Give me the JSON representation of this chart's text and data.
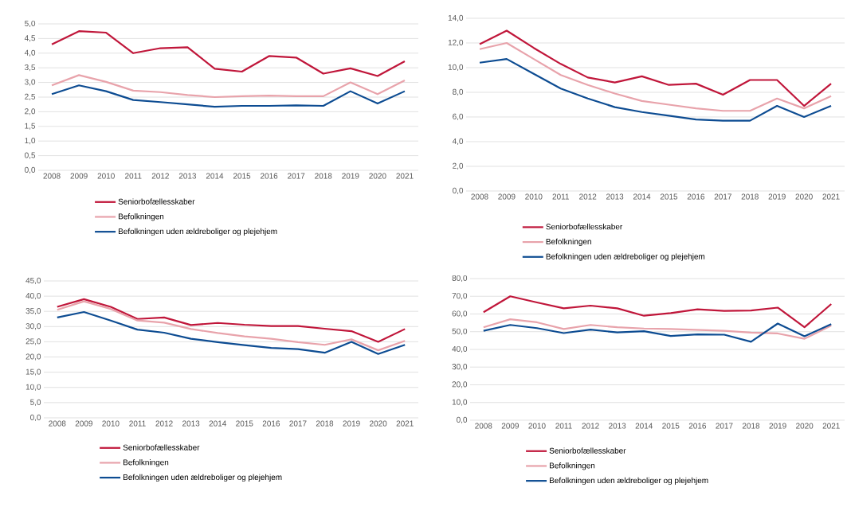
{
  "chart_data": [
    {
      "type": "line",
      "categories": [
        "2008",
        "2009",
        "2010",
        "2011",
        "2012",
        "2013",
        "2014",
        "2015",
        "2016",
        "2017",
        "2018",
        "2019",
        "2020",
        "2021"
      ],
      "ylim": [
        0,
        5
      ],
      "yticks": [
        {
          "value": 0,
          "label": "0,0"
        },
        {
          "value": 0.5,
          "label": "0,5"
        },
        {
          "value": 1,
          "label": "1,0"
        },
        {
          "value": 1.5,
          "label": "1,5"
        },
        {
          "value": 2,
          "label": "2,0"
        },
        {
          "value": 2.5,
          "label": "2,5"
        },
        {
          "value": 3,
          "label": "3,0"
        },
        {
          "value": 3.5,
          "label": "3,5"
        },
        {
          "value": 4,
          "label": "4,0"
        },
        {
          "value": 4.5,
          "label": "4,5"
        },
        {
          "value": 5,
          "label": "5,0"
        }
      ],
      "grid": "y",
      "legend": "bottom",
      "line_style": "solid",
      "marker": "none",
      "series": [
        {
          "name": "Seniorbofællesskaber",
          "color": "#c0163a",
          "values": [
            4.3,
            4.75,
            4.7,
            4.0,
            4.17,
            4.2,
            3.47,
            3.37,
            3.9,
            3.85,
            3.3,
            3.48,
            3.22,
            3.72
          ]
        },
        {
          "name": "Befolkningen",
          "color": "#e8a3ab",
          "values": [
            2.9,
            3.25,
            3.02,
            2.72,
            2.67,
            2.57,
            2.5,
            2.53,
            2.55,
            2.53,
            2.53,
            3.0,
            2.6,
            3.07
          ]
        },
        {
          "name": "Befolkningen uden ældreboliger og plejehjem",
          "color": "#0d4c92",
          "values": [
            2.6,
            2.9,
            2.7,
            2.4,
            2.33,
            2.25,
            2.17,
            2.2,
            2.2,
            2.22,
            2.2,
            2.7,
            2.28,
            2.7
          ]
        }
      ]
    },
    {
      "type": "line",
      "categories": [
        "2008",
        "2009",
        "2010",
        "2011",
        "2012",
        "2013",
        "2014",
        "2015",
        "2016",
        "2017",
        "2018",
        "2019",
        "2020",
        "2021"
      ],
      "ylim": [
        0,
        14
      ],
      "yticks": [
        {
          "value": 0,
          "label": "0,0"
        },
        {
          "value": 2,
          "label": "2,0"
        },
        {
          "value": 4,
          "label": "4,0"
        },
        {
          "value": 6,
          "label": "6,0"
        },
        {
          "value": 8,
          "label": "8,0"
        },
        {
          "value": 10,
          "label": "10,0"
        },
        {
          "value": 12,
          "label": "12,0"
        },
        {
          "value": 14,
          "label": "14,0"
        }
      ],
      "grid": "y",
      "legend": "bottom",
      "line_style": "solid",
      "marker": "none",
      "series": [
        {
          "name": "Seniorbofællesskaber",
          "color": "#c0163a",
          "values": [
            11.9,
            13.0,
            11.6,
            10.3,
            9.2,
            8.8,
            9.3,
            8.6,
            8.7,
            7.8,
            9.0,
            9.0,
            6.9,
            8.7
          ]
        },
        {
          "name": "Befolkningen",
          "color": "#e8a3ab",
          "values": [
            11.5,
            12.0,
            10.7,
            9.4,
            8.6,
            7.9,
            7.3,
            7.0,
            6.7,
            6.5,
            6.5,
            7.5,
            6.7,
            7.7
          ]
        },
        {
          "name": "Befolkningen uden ældreboliger og plejehjem",
          "color": "#0d4c92",
          "values": [
            10.4,
            10.7,
            9.5,
            8.3,
            7.5,
            6.8,
            6.4,
            6.1,
            5.8,
            5.7,
            5.7,
            6.9,
            6.0,
            6.9
          ]
        }
      ]
    },
    {
      "type": "line",
      "categories": [
        "2008",
        "2009",
        "2010",
        "2011",
        "2012",
        "2013",
        "2014",
        "2015",
        "2016",
        "2017",
        "2018",
        "2019",
        "2020",
        "2021"
      ],
      "ylim": [
        0,
        45
      ],
      "yticks": [
        {
          "value": 0,
          "label": "0,0"
        },
        {
          "value": 5,
          "label": "5,0"
        },
        {
          "value": 10,
          "label": "10,0"
        },
        {
          "value": 15,
          "label": "15,0"
        },
        {
          "value": 20,
          "label": "20,0"
        },
        {
          "value": 25,
          "label": "25,0"
        },
        {
          "value": 30,
          "label": "30,0"
        },
        {
          "value": 35,
          "label": "35,0"
        },
        {
          "value": 40,
          "label": "40,0"
        },
        {
          "value": 45,
          "label": "45,0"
        }
      ],
      "grid": "y",
      "legend": "bottom",
      "line_style": "solid",
      "marker": "none",
      "series": [
        {
          "name": "Seniorbofællesskaber",
          "color": "#c0163a",
          "values": [
            36.5,
            39,
            36.5,
            32.5,
            33,
            30.5,
            31.2,
            30.6,
            30.2,
            30.2,
            29.3,
            28.5,
            25,
            29.2
          ]
        },
        {
          "name": "Befolkningen",
          "color": "#e8a3ab",
          "values": [
            35.5,
            38.3,
            35.8,
            32,
            31.3,
            29.2,
            27.9,
            26.8,
            26,
            24.9,
            24,
            25.8,
            22.2,
            25.3
          ]
        },
        {
          "name": "Befolkningen uden ældreboliger og plejehjem",
          "color": "#0d4c92",
          "values": [
            33,
            34.8,
            32,
            29,
            28,
            26,
            24.9,
            23.9,
            23,
            22.6,
            21.4,
            25,
            21,
            24
          ]
        }
      ]
    },
    {
      "type": "line",
      "categories": [
        "2008",
        "2009",
        "2010",
        "2011",
        "2012",
        "2013",
        "2014",
        "2015",
        "2016",
        "2017",
        "2018",
        "2019",
        "2020",
        "2021"
      ],
      "ylim": [
        0,
        80
      ],
      "yticks": [
        {
          "value": 0,
          "label": "0,0"
        },
        {
          "value": 10,
          "label": "10,0"
        },
        {
          "value": 20,
          "label": "20,0"
        },
        {
          "value": 30,
          "label": "30,0"
        },
        {
          "value": 40,
          "label": "40,0"
        },
        {
          "value": 50,
          "label": "50,0"
        },
        {
          "value": 60,
          "label": "60,0"
        },
        {
          "value": 70,
          "label": "70,0"
        },
        {
          "value": 80,
          "label": "80,0"
        }
      ],
      "grid": "y",
      "legend": "bottom",
      "line_style": "solid",
      "marker": "none",
      "series": [
        {
          "name": "Seniorbofællesskaber",
          "color": "#c0163a",
          "values": [
            61,
            70,
            66.5,
            63.2,
            64.7,
            63.2,
            59,
            60.5,
            62.6,
            61.7,
            62,
            63.6,
            52.5,
            65.6
          ]
        },
        {
          "name": "Befolkningen",
          "color": "#e8a3ab",
          "values": [
            52.5,
            57,
            55.3,
            51.5,
            53.8,
            52.5,
            51.8,
            51.5,
            51,
            50.5,
            49.5,
            49,
            46,
            53.5
          ]
        },
        {
          "name": "Befolkningen uden ældreboliger og plejehjem",
          "color": "#0d4c92",
          "values": [
            50.5,
            53.8,
            52,
            49.2,
            51.2,
            49.6,
            50.3,
            47.6,
            48.5,
            48.3,
            44.3,
            54.6,
            47.4,
            54.3
          ]
        }
      ]
    }
  ]
}
